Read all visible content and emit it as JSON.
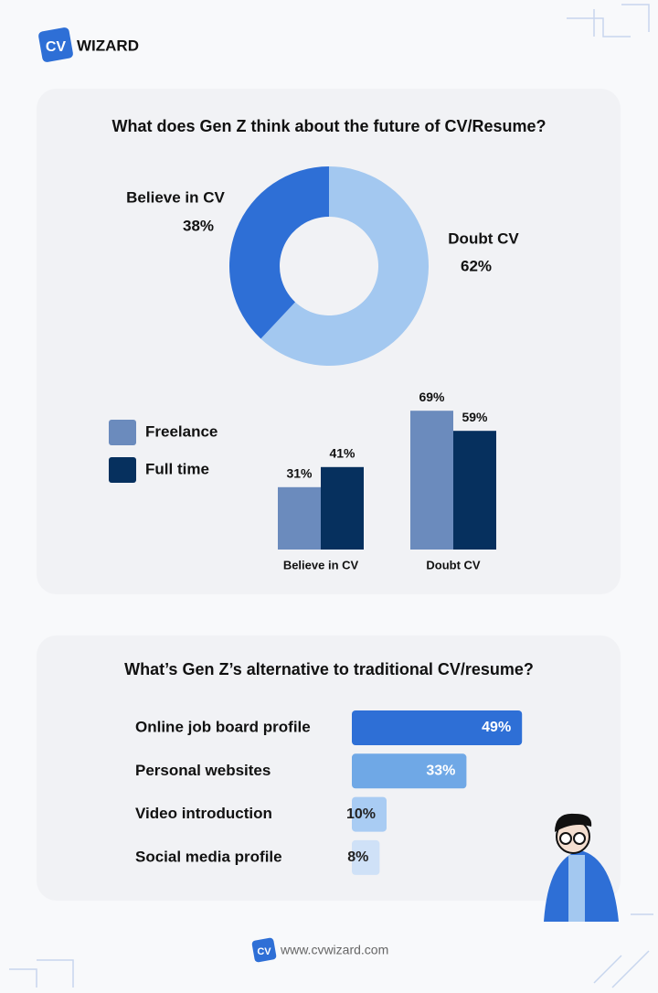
{
  "header": {
    "logo": "CV",
    "brand": "WIZARD"
  },
  "chart_data": [
    {
      "type": "pie",
      "donut": true,
      "title": "What does Gen Z think about the future of CV/Resume?",
      "categories": [
        "Believe in CV",
        "Doubt CV"
      ],
      "values": [
        38,
        62
      ],
      "value_labels": [
        "38%",
        "62%"
      ],
      "colors": [
        "#2e6fd6",
        "#a3c8f0"
      ]
    },
    {
      "type": "bar",
      "categories": [
        "Believe in CV",
        "Doubt CV"
      ],
      "series": [
        {
          "name": "Freelance",
          "color": "#6b8bbd",
          "values": [
            31,
            69
          ],
          "value_labels": [
            "31%",
            "69%"
          ]
        },
        {
          "name": "Full time",
          "color": "#06305e",
          "values": [
            41,
            59
          ],
          "value_labels": [
            "41%",
            "59%"
          ]
        }
      ],
      "legend": "left"
    },
    {
      "type": "barh",
      "title": "What’s Gen Z’s alternative to traditional CV/resume?",
      "categories": [
        "Online job board profile",
        "Personal websites",
        "Video introduction",
        "Social media profile"
      ],
      "values": [
        49,
        33,
        10,
        8
      ],
      "value_labels": [
        "49%",
        "33%",
        "10%",
        "8%"
      ],
      "colors": [
        "#2e6fd6",
        "#6fa8e6",
        "#a9ccf3",
        "#cfe1f7"
      ]
    }
  ],
  "footer": {
    "url": "www.cvwizard.com"
  }
}
